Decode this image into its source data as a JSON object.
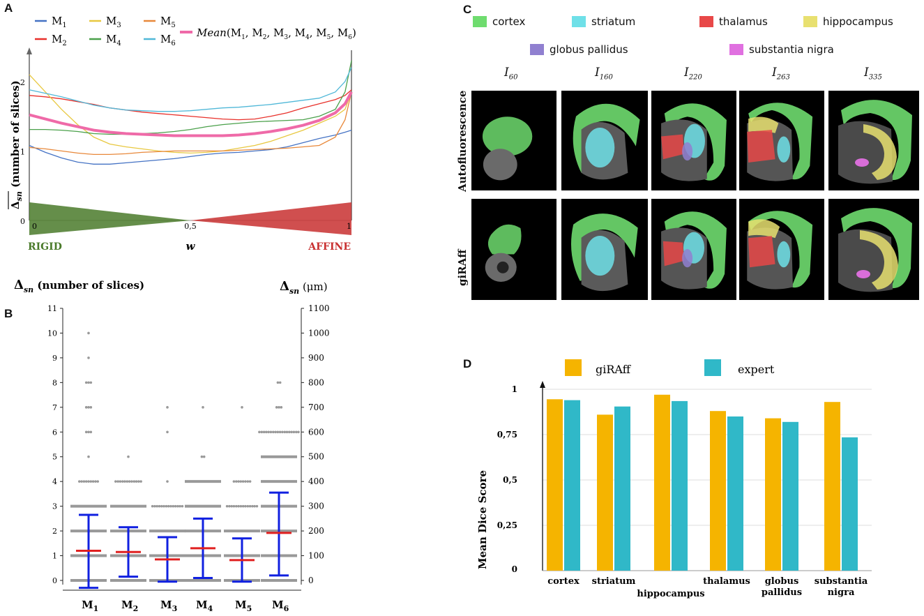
{
  "panels": {
    "a": "A",
    "b": "B",
    "c": "C",
    "d": "D"
  },
  "colors": {
    "M1": "#4472c4",
    "M2": "#e8302a",
    "M3": "#e8c840",
    "M4": "#4aa04a",
    "M5": "#e8883a",
    "M6": "#50b8d8",
    "mean": "#ef6aa8",
    "rigid": "#4a7a2a",
    "affine": "#c83030",
    "errorbar": "#1020e0",
    "median": "#e02020",
    "dots": "#999999",
    "giraff": "#f5b400",
    "expert": "#30b8c8",
    "cortex": "#6fdc6f",
    "striatum": "#6fe0e8",
    "thalamus": "#e84848",
    "hippocampus": "#e8e070",
    "globus_pallidus": "#9080d0",
    "substantia_nigra": "#e070e0"
  },
  "chart_data": [
    {
      "id": "A",
      "type": "line",
      "ylabel_main": "Δ",
      "ylabel_sub": "sn",
      "ylabel_rest": "(number of slices)",
      "xlabel": "w",
      "x_ticks": [
        "0",
        "0,5",
        "1"
      ],
      "y_ticks": [
        "0",
        "1",
        "2"
      ],
      "xlim": [
        0,
        1
      ],
      "ylim": [
        0,
        2.35
      ],
      "rigid_label": "RIGID",
      "affine_label": "AFFINE",
      "x": [
        0,
        0.05,
        0.1,
        0.15,
        0.2,
        0.25,
        0.3,
        0.35,
        0.4,
        0.45,
        0.5,
        0.55,
        0.6,
        0.65,
        0.7,
        0.75,
        0.8,
        0.85,
        0.9,
        0.95,
        0.98,
        1
      ],
      "series": [
        {
          "name": "M",
          "sub": "1",
          "key": "M1",
          "values": [
            1.08,
            0.98,
            0.9,
            0.84,
            0.81,
            0.81,
            0.83,
            0.85,
            0.87,
            0.89,
            0.92,
            0.95,
            0.97,
            0.98,
            1.0,
            1.02,
            1.06,
            1.12,
            1.18,
            1.23,
            1.27,
            1.3
          ]
        },
        {
          "name": "M",
          "sub": "2",
          "key": "M2",
          "values": [
            1.8,
            1.78,
            1.75,
            1.71,
            1.67,
            1.62,
            1.59,
            1.56,
            1.54,
            1.52,
            1.5,
            1.48,
            1.46,
            1.45,
            1.46,
            1.5,
            1.55,
            1.62,
            1.68,
            1.74,
            1.8,
            1.88
          ]
        },
        {
          "name": "M",
          "sub": "3",
          "key": "M3",
          "values": [
            2.1,
            1.85,
            1.6,
            1.38,
            1.2,
            1.1,
            1.06,
            1.03,
            1.0,
            0.98,
            0.97,
            0.98,
            1.0,
            1.04,
            1.08,
            1.14,
            1.22,
            1.3,
            1.4,
            1.5,
            1.6,
            1.85
          ]
        },
        {
          "name": "M",
          "sub": "4",
          "key": "M4",
          "values": [
            1.31,
            1.31,
            1.3,
            1.28,
            1.25,
            1.24,
            1.24,
            1.25,
            1.26,
            1.28,
            1.31,
            1.35,
            1.38,
            1.4,
            1.42,
            1.43,
            1.44,
            1.45,
            1.5,
            1.6,
            1.85,
            2.3
          ]
        },
        {
          "name": "M",
          "sub": "5",
          "key": "M5",
          "values": [
            1.05,
            1.03,
            1.0,
            0.97,
            0.95,
            0.95,
            0.96,
            0.98,
            0.99,
            1.0,
            1.0,
            1.0,
            1.0,
            1.01,
            1.02,
            1.03,
            1.04,
            1.06,
            1.08,
            1.2,
            1.45,
            1.85
          ]
        },
        {
          "name": "M",
          "sub": "6",
          "key": "M6",
          "values": [
            1.88,
            1.83,
            1.78,
            1.72,
            1.66,
            1.62,
            1.59,
            1.58,
            1.57,
            1.57,
            1.58,
            1.6,
            1.62,
            1.63,
            1.65,
            1.67,
            1.7,
            1.73,
            1.76,
            1.85,
            2.0,
            2.2
          ]
        }
      ],
      "mean_series": {
        "name": "Mean",
        "args": "(M",
        "arg_subs": [
          "1",
          "2",
          "3",
          "4",
          "5",
          "6"
        ],
        "key": "mean",
        "values": [
          1.52,
          1.46,
          1.4,
          1.35,
          1.3,
          1.27,
          1.25,
          1.24,
          1.23,
          1.22,
          1.22,
          1.22,
          1.22,
          1.23,
          1.25,
          1.28,
          1.32,
          1.37,
          1.44,
          1.55,
          1.68,
          1.85
        ]
      }
    },
    {
      "id": "B",
      "type": "scatter",
      "ylabel_left_main": "Δ",
      "ylabel_left_sub": "sn",
      "ylabel_left_rest": "(number of slices)",
      "ylabel_right_main": "Δ",
      "ylabel_right_sub": "sn",
      "ylabel_right_rest": "(μm)",
      "ylim": [
        0,
        11
      ],
      "y_ticks_left": [
        "0",
        "1",
        "2",
        "3",
        "4",
        "5",
        "6",
        "7",
        "8",
        "9",
        "10",
        "11"
      ],
      "y_ticks_right": [
        "0",
        "100",
        "200",
        "300",
        "400",
        "500",
        "600",
        "700",
        "800",
        "900",
        "1000",
        "1100"
      ],
      "categories": [
        {
          "name": "M",
          "sub": "1",
          "median": 1.2,
          "lower": -0.3,
          "upper": 2.65,
          "dots": {
            "4": 9,
            "5": 1,
            "6": 3,
            "7": 3,
            "8": 3,
            "9": 1,
            "10": 1
          }
        },
        {
          "name": "M",
          "sub": "2",
          "median": 1.15,
          "lower": 0.15,
          "upper": 2.15,
          "dots": {
            "4": 12,
            "5": 1
          }
        },
        {
          "name": "M",
          "sub": "3",
          "median": 0.85,
          "lower": -0.05,
          "upper": 1.75,
          "dots": {
            "3": 14,
            "4": 1,
            "6": 1,
            "7": 1
          }
        },
        {
          "name": "M",
          "sub": "4",
          "median": 1.3,
          "lower": 0.1,
          "upper": 2.5,
          "dots": {
            "5": 2,
            "7": 1
          }
        },
        {
          "name": "M",
          "sub": "5",
          "median": 0.82,
          "lower": -0.05,
          "upper": 1.7,
          "dots": {
            "3": 14,
            "4": 8,
            "7": 1
          }
        },
        {
          "name": "M",
          "sub": "6",
          "median": 1.92,
          "lower": 0.2,
          "upper": 3.55,
          "dots": {
            "6": 18,
            "7": 3,
            "8": 2
          }
        }
      ],
      "bars_full": {
        "M1": [
          0,
          1,
          2,
          3
        ],
        "M2": [
          0,
          1,
          2,
          3
        ],
        "M3": [
          0,
          1,
          2
        ],
        "M4": [
          0,
          1,
          2,
          3,
          4
        ],
        "M5": [
          0,
          1,
          2
        ],
        "M6": [
          0,
          1,
          2,
          3,
          4,
          5
        ]
      }
    },
    {
      "id": "D",
      "type": "bar",
      "ylabel": "Mean Dice Score",
      "ylim": [
        0,
        1.05
      ],
      "y_ticks": [
        "0",
        "0,25",
        "0,5",
        "0,75",
        "1"
      ],
      "categories": [
        "cortex",
        "striatum",
        "hippocampus",
        "thalamus",
        "globus\npallidus",
        "substantia\nnigra"
      ],
      "series": [
        {
          "name": "giRAff",
          "key": "giraff",
          "values": [
            0.945,
            0.86,
            0.97,
            0.88,
            0.84,
            0.93
          ]
        },
        {
          "name": "expert",
          "key": "expert",
          "values": [
            0.94,
            0.905,
            0.935,
            0.85,
            0.82,
            0.735
          ]
        }
      ]
    }
  ],
  "panelC": {
    "legend": [
      {
        "label": "cortex",
        "key": "cortex"
      },
      {
        "label": "striatum",
        "key": "striatum"
      },
      {
        "label": "thalamus",
        "key": "thalamus"
      },
      {
        "label": "hippocampus",
        "key": "hippocampus"
      },
      {
        "label": "globus pallidus",
        "key": "globus_pallidus"
      },
      {
        "label": "substantia nigra",
        "key": "substantia_nigra"
      }
    ],
    "columns": [
      {
        "label": "I",
        "sub": "60"
      },
      {
        "label": "I",
        "sub": "160"
      },
      {
        "label": "I",
        "sub": "220"
      },
      {
        "label": "I",
        "sub": "263"
      },
      {
        "label": "I",
        "sub": "335"
      }
    ],
    "rows": [
      "Autofluorescence",
      "giRAff"
    ]
  }
}
